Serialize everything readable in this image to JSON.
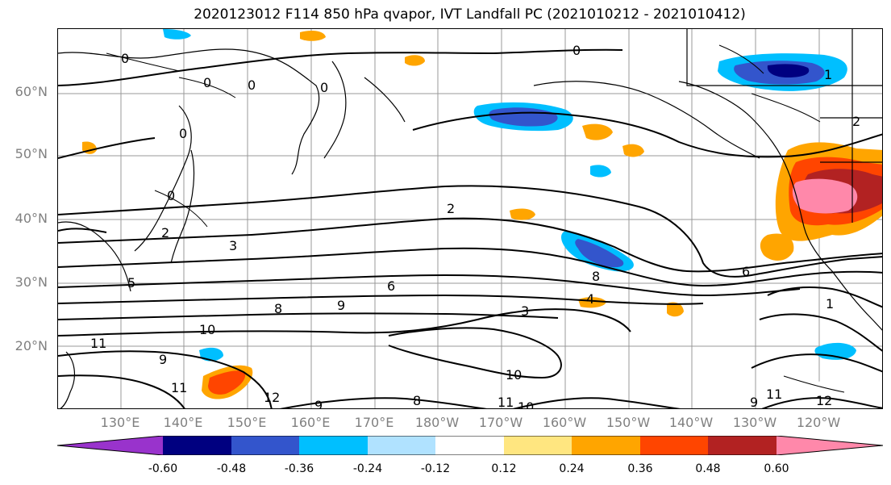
{
  "title": "2020123012 F114 850 hPa qvapor, IVT Landfall PC (2021010212 - 2021010412)",
  "lat_labels": [
    "60°N",
    "50°N",
    "40°N",
    "30°N",
    "20°N"
  ],
  "lat_values": [
    60,
    50,
    40,
    30,
    20
  ],
  "lon_labels": [
    "130°E",
    "140°E",
    "150°E",
    "160°E",
    "170°E",
    "180°W",
    "170°W",
    "160°W",
    "150°W",
    "140°W",
    "130°W",
    "120°W"
  ],
  "lon_values": [
    130,
    140,
    150,
    160,
    170,
    180,
    190,
    200,
    210,
    220,
    230,
    240
  ],
  "map_extent": {
    "lon_min": 121,
    "lon_max": 251,
    "lat_min": 10,
    "lat_max": 70
  },
  "contour_labels": [
    "0",
    "0",
    "0",
    "0",
    "0",
    "0",
    "1",
    "2",
    "0",
    "2",
    "2",
    "3",
    "5",
    "6",
    "6",
    "8",
    "8",
    "9",
    "4",
    "3",
    "1",
    "10",
    "11",
    "9",
    "11",
    "12",
    "9",
    "8",
    "10",
    "11",
    "10",
    "9",
    "11",
    "12"
  ],
  "colorbar": {
    "ticks": [
      "-0.60",
      "-0.48",
      "-0.36",
      "-0.24",
      "-0.12",
      "0.12",
      "0.24",
      "0.36",
      "0.48",
      "0.60"
    ],
    "colors": [
      "#9933cc",
      "#000080",
      "#3355cc",
      "#00bfff",
      "#b0e2ff",
      "#ffffff",
      "#ffe680",
      "#ffa500",
      "#ff4500",
      "#b22222",
      "#ff88aa"
    ]
  }
}
